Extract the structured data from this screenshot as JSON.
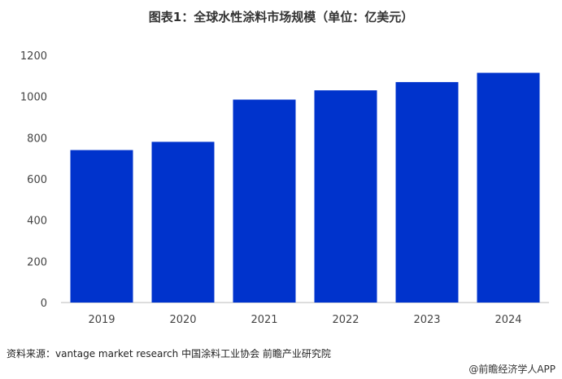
{
  "chart_data": {
    "type": "bar",
    "title": "图表1：全球水性涂料市场规模（单位：亿美元）",
    "categories": [
      "2019",
      "2020",
      "2021",
      "2022",
      "2023",
      "2024"
    ],
    "values": [
      740,
      780,
      985,
      1030,
      1070,
      1115
    ],
    "ylim": [
      0,
      1200
    ],
    "yticks": [
      0,
      200,
      400,
      600,
      800,
      1000,
      1200
    ],
    "grid": false,
    "bar_color": "#0033cc"
  },
  "footer": {
    "source": "资料来源：vantage market research 中国涂料工业协会  前瞻产业研究院",
    "brand": "@前瞻经济学人APP"
  }
}
